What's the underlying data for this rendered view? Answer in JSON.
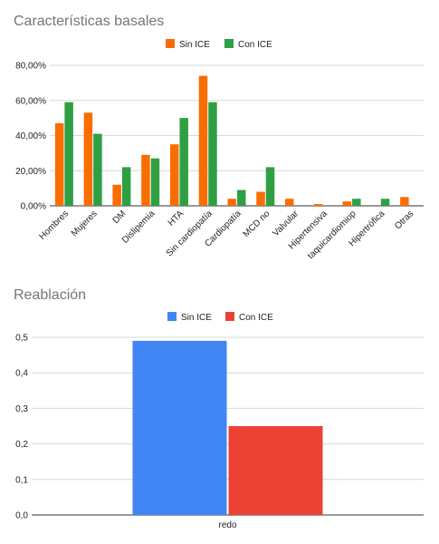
{
  "chart_data": [
    {
      "type": "bar",
      "title": "Características basales",
      "categories": [
        "Hombres",
        "Mujeres",
        "DM",
        "Dislipemia",
        "HTA",
        "Sin cardiopatía",
        "Cardiopatía",
        "MCD no",
        "Valvular",
        "Hipertensiva",
        "taquicardiomiop",
        "Hipertrófica",
        "Otras"
      ],
      "series": [
        {
          "name": "Sin ICE",
          "color": "#fa6d01",
          "values": [
            0.47,
            0.53,
            0.12,
            0.29,
            0.35,
            0.74,
            0.04,
            0.08,
            0.04,
            0.01,
            0.025,
            0.0,
            0.05
          ]
        },
        {
          "name": "Con ICE",
          "color": "#2ea043",
          "values": [
            0.59,
            0.41,
            0.22,
            0.27,
            0.5,
            0.59,
            0.09,
            0.22,
            0.0,
            0.0,
            0.04,
            0.04,
            0.0
          ]
        }
      ],
      "ylim": [
        0,
        0.8
      ],
      "yticks": [
        "0,00%",
        "20,00%",
        "40,00%",
        "60,00%",
        "80,00%"
      ],
      "grid": true,
      "legend": "top"
    },
    {
      "type": "bar",
      "title": "Reablación",
      "categories": [
        "redo"
      ],
      "series": [
        {
          "name": "Sin ICE",
          "color": "#4285f4",
          "values": [
            0.49
          ]
        },
        {
          "name": "Con ICE",
          "color": "#ea4335",
          "values": [
            0.25
          ]
        }
      ],
      "ylim": [
        0,
        0.5
      ],
      "yticks": [
        "0,0",
        "0,1",
        "0,2",
        "0,3",
        "0,4",
        "0,5"
      ],
      "grid": true,
      "legend": "top"
    }
  ]
}
